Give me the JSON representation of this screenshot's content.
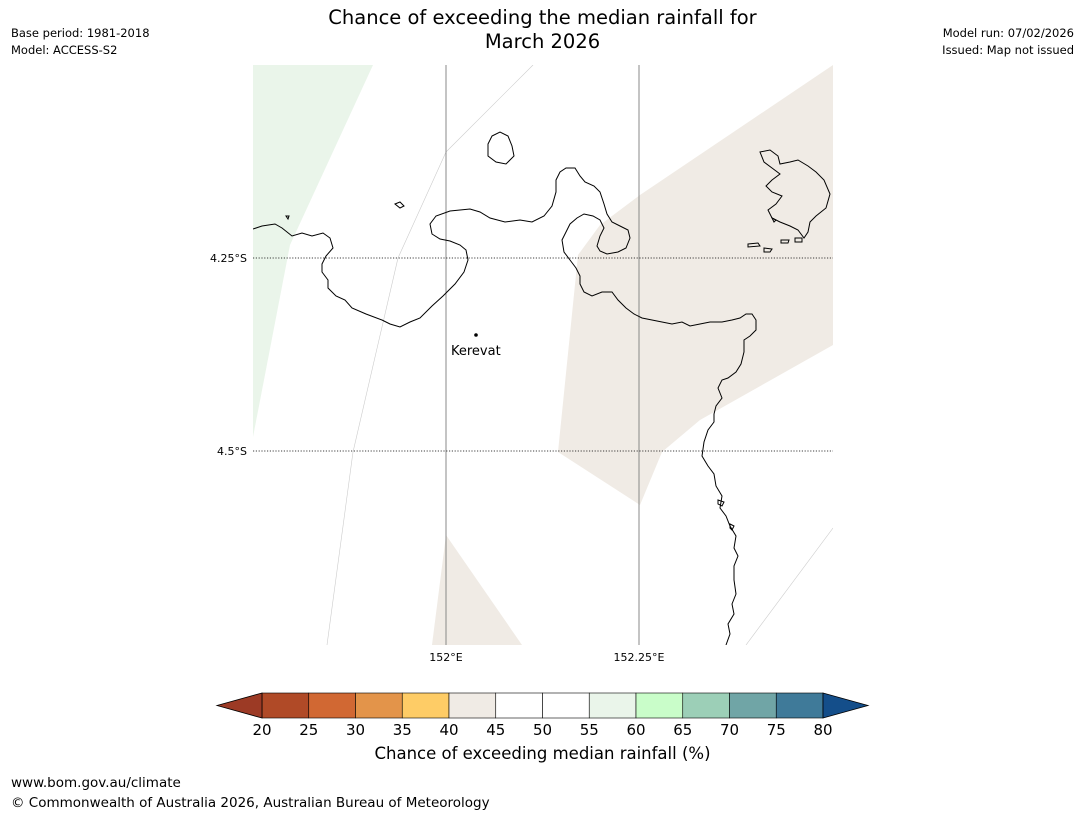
{
  "header": {
    "title_line1": "Chance of exceeding the median rainfall for",
    "title_line2": "March 2026",
    "base_period": "Base period: 1981-2018",
    "model": "Model: ACCESS-S2",
    "model_run": "Model run: 07/02/2026",
    "issued": "Issued: Map not issued"
  },
  "map": {
    "lat_labels": [
      "4.25°S",
      "4.5°S"
    ],
    "lon_labels": [
      "152°E",
      "152.25°E"
    ],
    "place": {
      "name": "Kerevat"
    },
    "region_colors": {
      "light_green": "#eaf5ea",
      "beige": "#f0ebe5",
      "white": "#ffffff"
    }
  },
  "colorbar": {
    "label": "Chance of exceeding median rainfall (%)",
    "ticks": [
      "20",
      "25",
      "30",
      "35",
      "40",
      "45",
      "50",
      "55",
      "60",
      "65",
      "70",
      "75",
      "80"
    ],
    "low_extend_color": "#9c3a25",
    "high_extend_color": "#144e8a",
    "colors": [
      "#b04a27",
      "#d16833",
      "#e3944a",
      "#fecc66",
      "#f0ebe5",
      "#ffffff",
      "#ffffff",
      "#eaf5ea",
      "#c9fdc9",
      "#9ccfb7",
      "#70a5a6",
      "#3f7a99"
    ]
  },
  "footer": {
    "url": "www.bom.gov.au/climate",
    "copyright": "© Commonwealth of Australia 2026, Australian Bureau of Meteorology"
  }
}
